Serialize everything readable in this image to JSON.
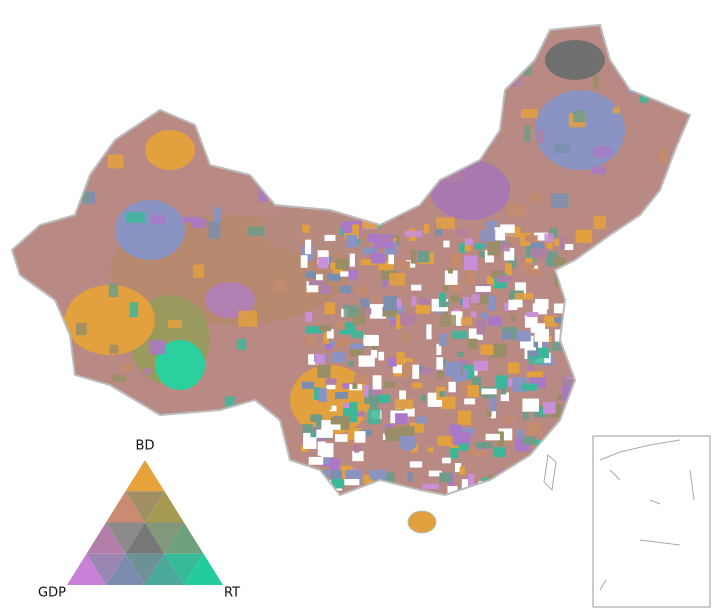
{
  "legend": {
    "top": "BD",
    "left": "GDP",
    "right": "RT"
  }
}
